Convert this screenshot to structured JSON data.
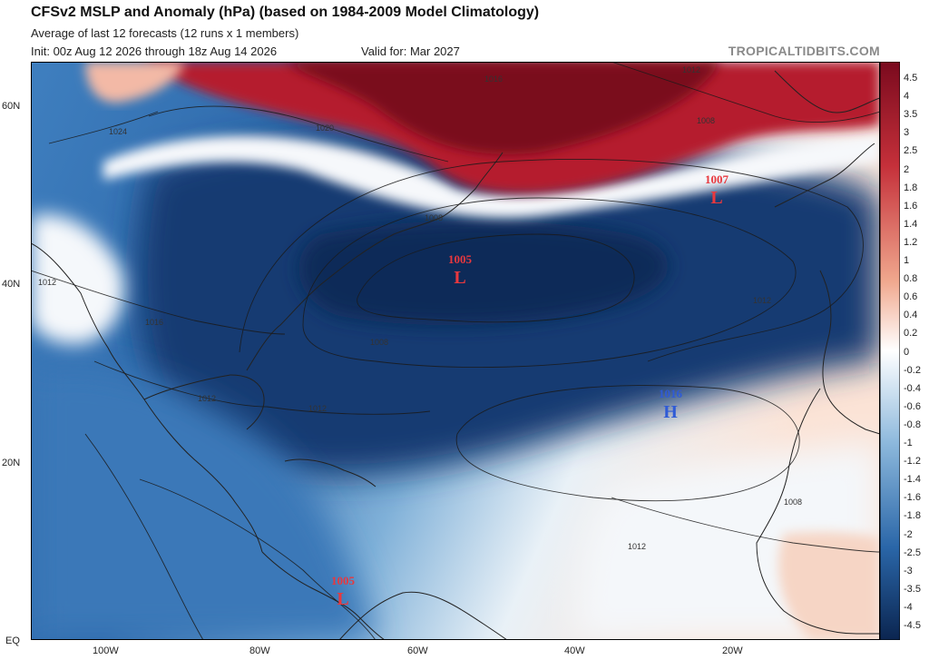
{
  "header": {
    "title": "CFSv2 MSLP and Anomaly (hPa) (based on 1984-2009 Model Climatology)",
    "subtitle_members": "Average of last 12 forecasts (12 runs x 1 members)",
    "init": "Init: 00z Aug 12 2026 through 18z Aug 14 2026",
    "valid": "Valid for: Mar 2027",
    "brand": "TROPICALTIDBITS.COM"
  },
  "axes": {
    "lat_labels": [
      "60N",
      "40N",
      "20N",
      "EQ"
    ],
    "lon_labels": [
      "100W",
      "80W",
      "60W",
      "40W",
      "20W"
    ]
  },
  "colorbar": {
    "ticks": [
      "4.5",
      "4",
      "3.5",
      "3",
      "2.5",
      "2",
      "1.8",
      "1.6",
      "1.4",
      "1.2",
      "1",
      "0.8",
      "0.6",
      "0.4",
      "0.2",
      "0",
      "-0.2",
      "-0.4",
      "-0.6",
      "-0.8",
      "-1",
      "-1.2",
      "-1.4",
      "-1.6",
      "-1.8",
      "-2",
      "-2.5",
      "-3",
      "-3.5",
      "-4",
      "-4.5"
    ],
    "colors": {
      "max": "#7a0a1e",
      "high": "#c5303a",
      "mid_high": "#f0a88e",
      "zero": "#ffffff",
      "mid_low": "#8cb8dc",
      "low": "#2a66a8",
      "min": "#0b2550"
    }
  },
  "centers": {
    "low_atlantic": {
      "value": "1005",
      "letter": "L"
    },
    "low_east": {
      "value": "1007",
      "letter": "L"
    },
    "high_subtropic": {
      "value": "1016",
      "letter": "H"
    },
    "low_south_america": {
      "value": "1005",
      "letter": "L"
    }
  },
  "isobar_labels": {
    "i1024": "1024",
    "i1020": "1020",
    "i1016_top": "1016",
    "i1012_top": "1012",
    "i1008_ne": "1008",
    "i1008_nf": "1008",
    "i1008_mid": "1008",
    "i1012_west": "1012",
    "i1016_west": "1016",
    "i1012_gulf": "1012",
    "i1012_fl": "1012",
    "i1012_east": "1012",
    "i1012_south": "1012",
    "i1008_africa": "1008"
  }
}
